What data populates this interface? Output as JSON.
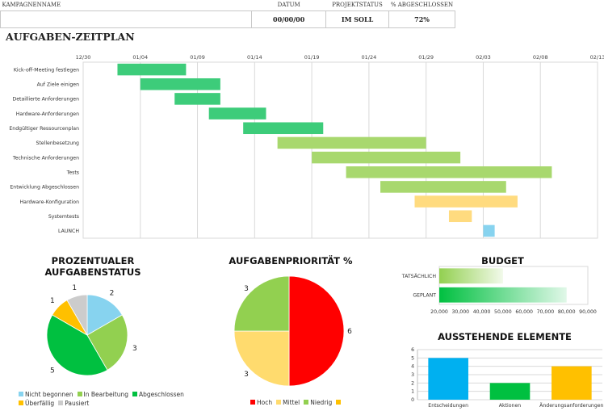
{
  "header": {
    "columns": [
      "KAMPAGNENNAME",
      "DATUM",
      "PROJEKTSTATUS",
      "% ABGESCHLOSSEN"
    ],
    "values": [
      "",
      "00/00/00",
      "IM SOLL",
      "72%"
    ]
  },
  "gantt_title": "AUFGABEN-ZEITPLAN",
  "status_title": "PROZENTUALER AUFGABENSTATUS",
  "priority_title": "AUFGABENPRIORITÄT %",
  "budget_title": "BUDGET",
  "pending_title": "AUSSTEHENDE ELEMENTE",
  "chart_data": [
    {
      "type": "bar",
      "subtype": "gantt",
      "title": "AUFGABEN-ZEITPLAN",
      "x_ticks": [
        "12/30",
        "01/04",
        "01/09",
        "01/14",
        "01/19",
        "01/24",
        "01/29",
        "02/03",
        "02/08",
        "02/13"
      ],
      "x_range_days": [
        0,
        45
      ],
      "tasks": [
        {
          "label": "Kick-off-Meeting festlegen",
          "start": 3,
          "end": 9,
          "color": "#3dcc7a"
        },
        {
          "label": "Auf Ziele einigen",
          "start": 5,
          "end": 12,
          "color": "#3dcc7a"
        },
        {
          "label": "Detaillierte Anforderungen",
          "start": 8,
          "end": 12,
          "color": "#3dcc7a"
        },
        {
          "label": "Hardware-Anforderungen",
          "start": 11,
          "end": 16,
          "color": "#3dcc7a"
        },
        {
          "label": "Endgültiger Ressourcenplan",
          "start": 14,
          "end": 21,
          "color": "#3dcc7a"
        },
        {
          "label": "Stellenbesetzung",
          "start": 17,
          "end": 30,
          "color": "#a8d86e"
        },
        {
          "label": "Technische Anforderungen",
          "start": 20,
          "end": 33,
          "color": "#a8d86e"
        },
        {
          "label": "Tests",
          "start": 23,
          "end": 41,
          "color": "#a8d86e"
        },
        {
          "label": "Entwicklung Abgeschlossen",
          "start": 26,
          "end": 37,
          "color": "#a8d86e"
        },
        {
          "label": "Hardware-Konfiguration",
          "start": 29,
          "end": 38,
          "color": "#ffdb7f"
        },
        {
          "label": "Systemtests",
          "start": 32,
          "end": 34,
          "color": "#ffdb7f"
        },
        {
          "label": "LAUNCH",
          "start": 35.0,
          "end": 36.0,
          "color": "#87d3ef"
        }
      ],
      "grid": true
    },
    {
      "type": "pie",
      "title": "PROZENTUALER AUFGABENSTATUS",
      "slices": [
        {
          "label": "Nicht begonnen",
          "value": 2,
          "color": "#87d3ef"
        },
        {
          "label": "In Bearbeitung",
          "value": 3,
          "color": "#92d050"
        },
        {
          "label": "Abgeschlossen",
          "value": 5,
          "color": "#00c040"
        },
        {
          "label": "Überfällig",
          "value": 1,
          "color": "#ffc000"
        },
        {
          "label": "Pausiert",
          "value": 1,
          "color": "#cccccc"
        }
      ],
      "legend": "bottom"
    },
    {
      "type": "pie",
      "title": "AUFGABENPRIORITÄT %",
      "slices": [
        {
          "label": "Hoch",
          "value": 6,
          "color": "#ff0000"
        },
        {
          "label": "Mittel",
          "value": 3,
          "color": "#ffdb6e"
        },
        {
          "label": "Niedrig",
          "value": 3,
          "color": "#92d050"
        },
        {
          "label": "",
          "value": 0,
          "color": "#ffc000"
        }
      ],
      "legend": "bottom"
    },
    {
      "type": "bar",
      "orientation": "horizontal",
      "title": "BUDGET",
      "categories": [
        "TATSÄCHLICH",
        "GEPLANT"
      ],
      "values": [
        50000,
        80000
      ],
      "x_ticks": [
        "20,000",
        "30,000",
        "40,000",
        "50,000",
        "60,000",
        "70,000",
        "80,000",
        "90,000"
      ],
      "xlim": [
        20000,
        90000
      ],
      "colors": [
        "#92d050",
        "#00c040"
      ]
    },
    {
      "type": "bar",
      "title": "AUSSTEHENDE ELEMENTE",
      "categories": [
        "Entscheidungen",
        "Aktionen",
        "Änderungsanforderungen"
      ],
      "values": [
        5,
        2,
        4
      ],
      "y_ticks": [
        "0",
        "1",
        "2",
        "3",
        "4",
        "5",
        "6"
      ],
      "ylim": [
        0,
        6
      ],
      "colors": [
        "#00b0f0",
        "#00c040",
        "#ffc000"
      ],
      "grid": true
    }
  ]
}
